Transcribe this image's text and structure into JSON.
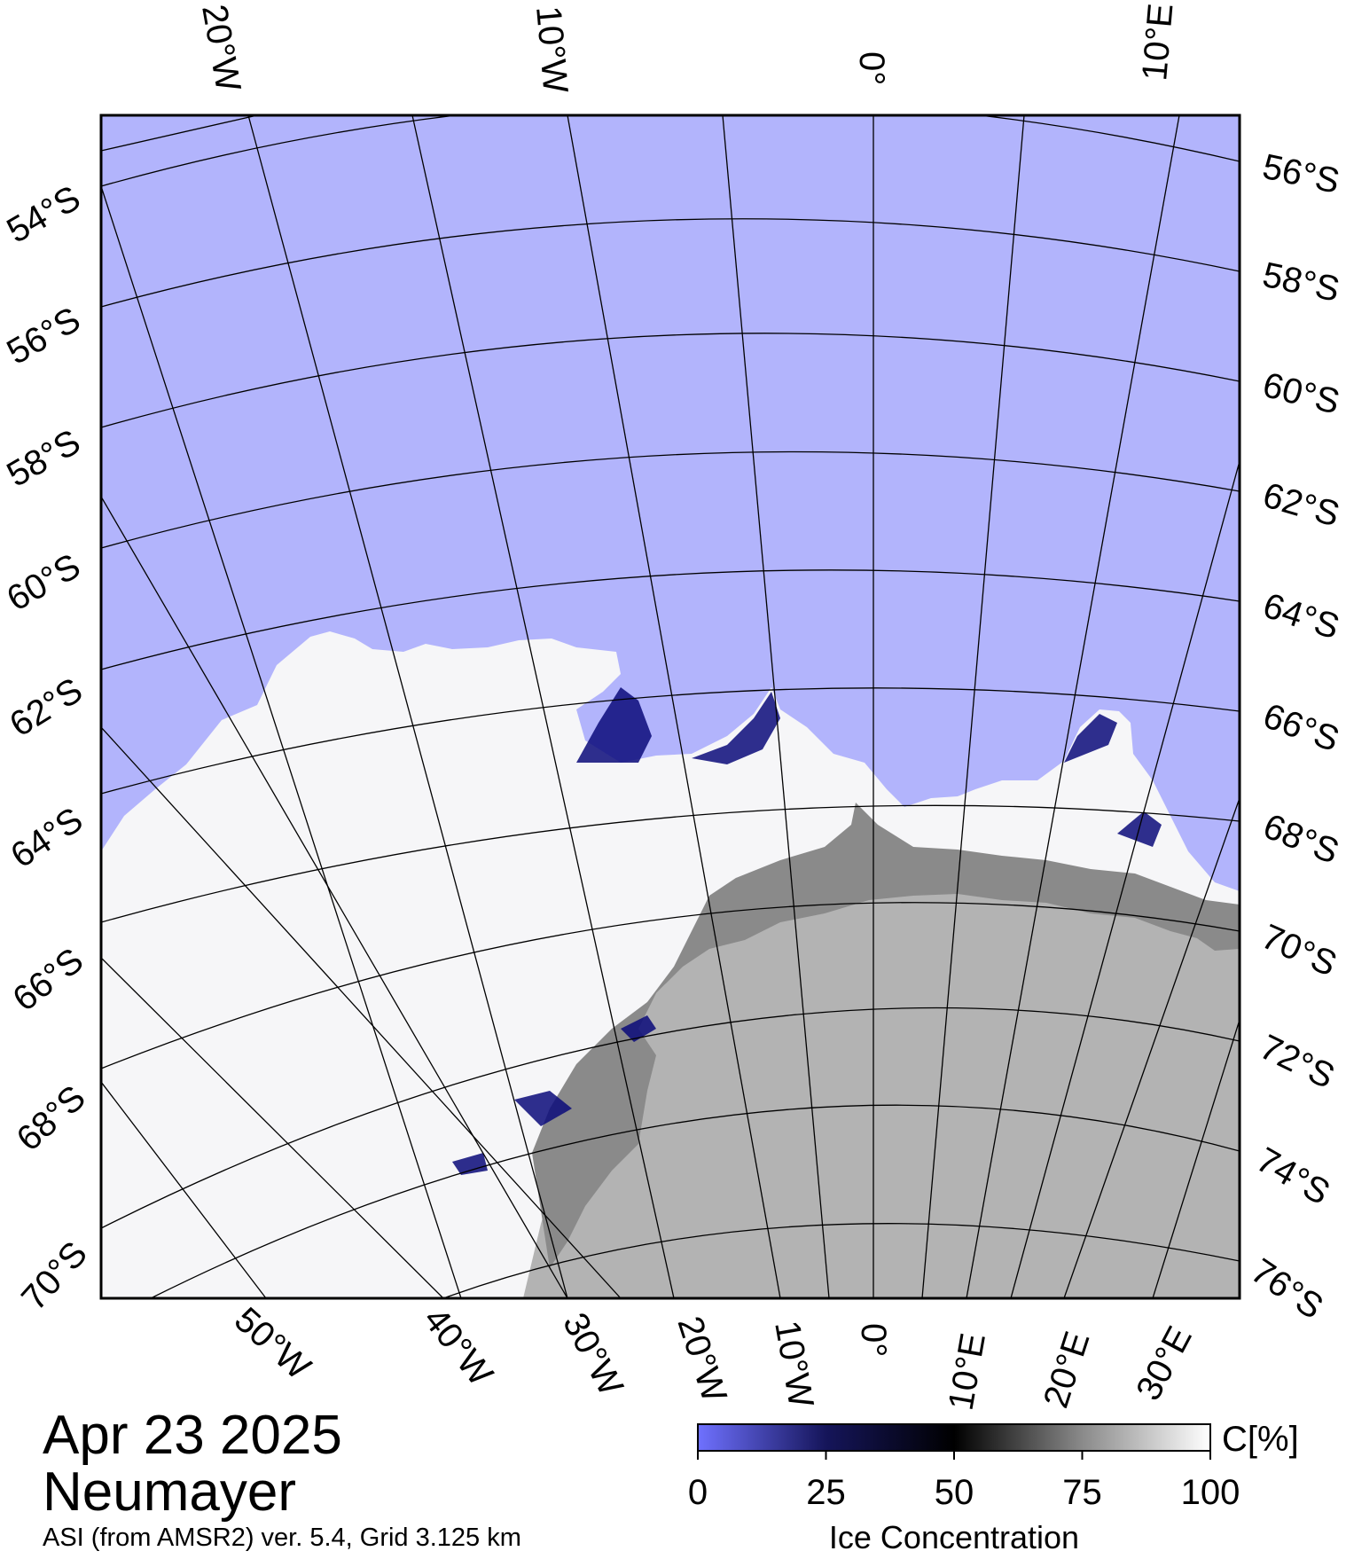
{
  "date": "Apr 23 2025",
  "station": "Neumayer",
  "product": "ASI (from AMSR2) ver. 5.4,  Grid 3.125 km",
  "colors": {
    "open_water": "#b2b4fc",
    "land": "#b3b3b3",
    "ice_shelf": "#8a8a8a",
    "frame": "#000000"
  },
  "lat_labels_left": [
    "54°S",
    "56°S",
    "58°S",
    "60°S",
    "62°S",
    "64°S",
    "66°S",
    "68°S",
    "70°S"
  ],
  "lat_labels_right": [
    "56°S",
    "58°S",
    "60°S",
    "62°S",
    "64°S",
    "66°S",
    "68°S",
    "70°S",
    "72°S",
    "74°S",
    "76°S"
  ],
  "lon_labels_top": [
    "20°W",
    "10°W",
    "0°",
    "10°E"
  ],
  "lon_labels_bottom": [
    "50°W",
    "40°W",
    "30°W",
    "20°W",
    "10°W",
    "0°",
    "10°E",
    "20°E",
    "30°E"
  ],
  "colorbar": {
    "unit": "C[%]",
    "ticks": [
      "0",
      "25",
      "50",
      "75",
      "100"
    ],
    "label": "Ice Concentration"
  }
}
